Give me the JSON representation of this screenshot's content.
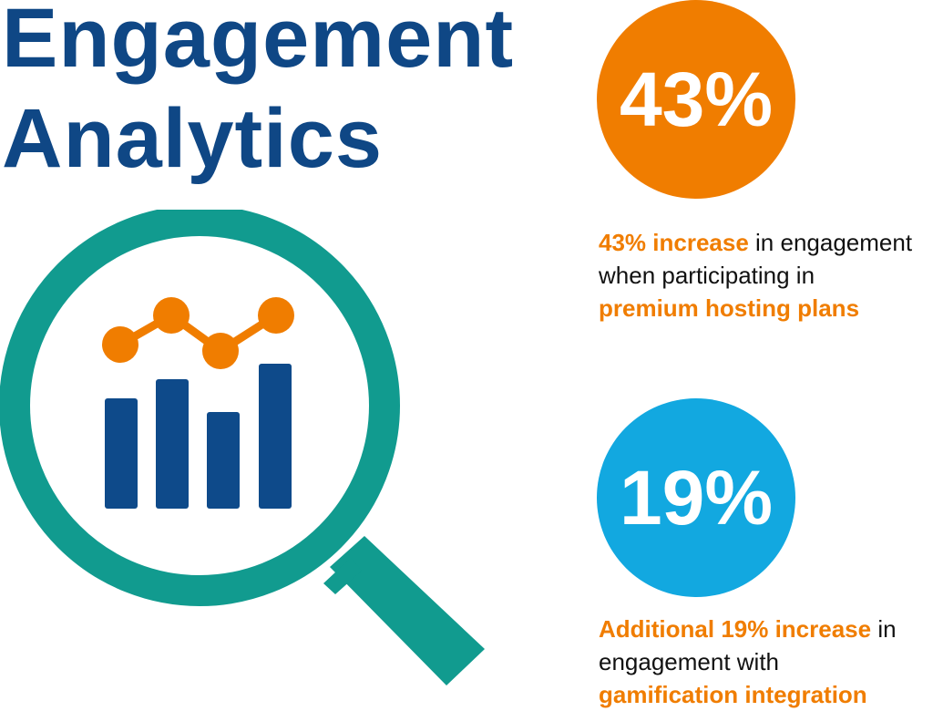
{
  "title": {
    "line1": "Engagement",
    "line2": "Analytics"
  },
  "colors": {
    "title": "#0f4785",
    "orange": "#f07d00",
    "blue": "#12a8e0",
    "teal": "#119b8f",
    "navy": "#0e4a8a",
    "text": "#111111"
  },
  "icons": {
    "graphic": "magnifying-glass-with-chart-icon"
  },
  "stats": [
    {
      "value": "43%",
      "color": "#f07d00",
      "highlight_color": "#f07d00",
      "line1_hl": "43% increase",
      "line1_rest": " in engagement",
      "line2": "when participating in",
      "line3_hl": "premium hosting plans"
    },
    {
      "value": "19%",
      "color": "#12a8e0",
      "highlight_color": "#f07d00",
      "line1_hl": "Additional 19% increase",
      "line1_rest": " in",
      "line2": "engagement with",
      "line3_hl": "gamification integration"
    }
  ]
}
